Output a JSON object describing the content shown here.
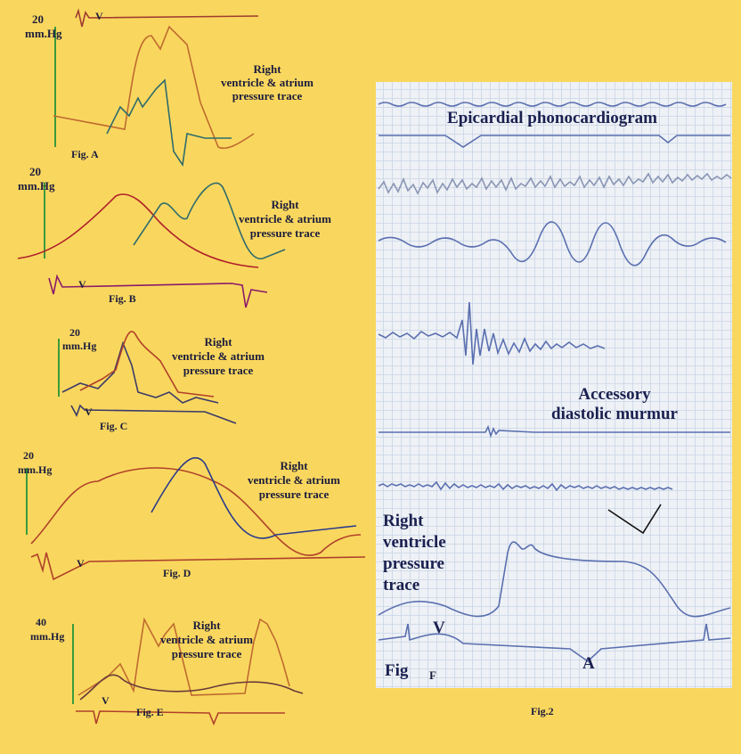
{
  "panels": [
    {
      "scale": [
        "20",
        "mm.Hg"
      ],
      "label": [
        "Right",
        "ventricle & atrium",
        "pressure trace"
      ],
      "v": "V",
      "caption": "Fig.  A"
    },
    {
      "scale": [
        "20",
        "mm.Hg"
      ],
      "label": [
        "Right",
        "ventricle & atrium",
        "pressure trace"
      ],
      "v": "V",
      "caption": "Fig.  B"
    },
    {
      "scale": [
        "20",
        "mm.Hg"
      ],
      "label": [
        "Right",
        "ventricle & atrium",
        "pressure trace"
      ],
      "v": "V",
      "caption": "Fig.  C"
    },
    {
      "scale": [
        "20",
        "mm.Hg"
      ],
      "label": [
        "Right",
        "ventricle & atrium",
        "pressure trace"
      ],
      "v": "V",
      "caption": "Fig.  D"
    },
    {
      "scale": [
        "40",
        "mm.Hg"
      ],
      "label": [
        "Right",
        "ventricle & atrium",
        "pressure trace"
      ],
      "v": "V",
      "caption": "Fig.  E"
    }
  ],
  "fig2": {
    "title": "Epicardial phonocardiogram",
    "murmur": [
      "Accessory",
      "diastolic murmur"
    ],
    "pressure": [
      "Right",
      "ventricle",
      "pressure",
      "trace"
    ],
    "v": "V",
    "fig": "Fig",
    "f": "F",
    "a": "A",
    "caption": "Fig.2"
  }
}
